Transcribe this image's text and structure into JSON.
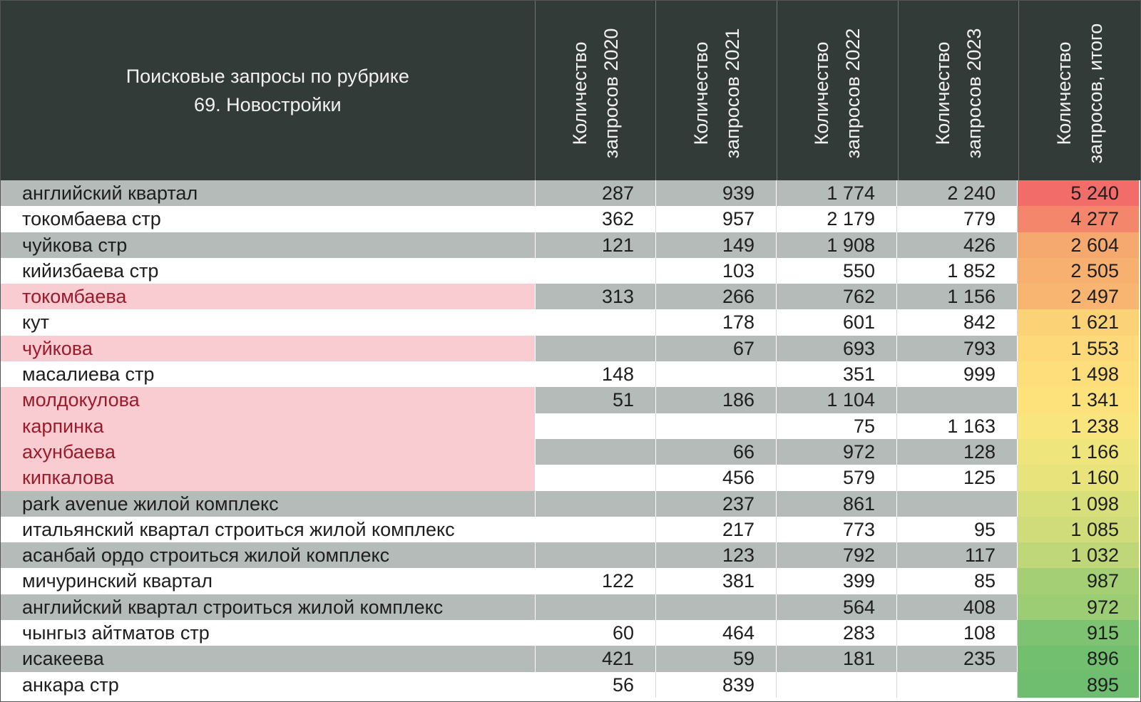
{
  "chart_data": {
    "type": "table",
    "title_lines": [
      "Поисковые запросы по рубрике",
      "69. Новостройки"
    ],
    "columns": [
      [
        "Количество",
        "запросов 2020"
      ],
      [
        "Количество",
        "запросов 2021"
      ],
      [
        "Количество",
        "запросов 2022"
      ],
      [
        "Количество",
        "запросов 2023"
      ],
      [
        "Количество",
        "запросов, итого"
      ]
    ],
    "rows": [
      {
        "name": "английский квартал",
        "values": [
          "287",
          "939",
          "1 774",
          "2 240"
        ],
        "total": "5 240",
        "total_color": "#f26d6a",
        "highlight": false
      },
      {
        "name": "токомбаева стр",
        "values": [
          "362",
          "957",
          "2 179",
          "779"
        ],
        "total": "4 277",
        "total_color": "#f3866b",
        "highlight": false
      },
      {
        "name": "чуйкова стр",
        "values": [
          "121",
          "149",
          "1 908",
          "426"
        ],
        "total": "2 604",
        "total_color": "#f6a96f",
        "highlight": false
      },
      {
        "name": "кийизбаева стр",
        "values": [
          "",
          "103",
          "550",
          "1 852"
        ],
        "total": "2 505",
        "total_color": "#f7b06f",
        "highlight": false
      },
      {
        "name": "токомбаева",
        "values": [
          "313",
          "266",
          "762",
          "1 156"
        ],
        "total": "2 497",
        "total_color": "#f8b471",
        "highlight": true
      },
      {
        "name": "кут",
        "values": [
          "",
          "178",
          "601",
          "842"
        ],
        "total": "1 621",
        "total_color": "#fbd276",
        "highlight": false
      },
      {
        "name": "чуйкова",
        "values": [
          "",
          "67",
          "693",
          "793"
        ],
        "total": "1 553",
        "total_color": "#fdd979",
        "highlight": true
      },
      {
        "name": "масалиева стр",
        "values": [
          "148",
          "",
          "351",
          "999"
        ],
        "total": "1 498",
        "total_color": "#fedd7b",
        "highlight": false
      },
      {
        "name": "молдокулова",
        "values": [
          "51",
          "186",
          "1 104",
          ""
        ],
        "total": "1 341",
        "total_color": "#fde27c",
        "highlight": true
      },
      {
        "name": "карпинка",
        "values": [
          "",
          "",
          "75",
          "1 163"
        ],
        "total": "1 238",
        "total_color": "#f9e57d",
        "highlight": true
      },
      {
        "name": "ахунбаева",
        "values": [
          "",
          "66",
          "972",
          "128"
        ],
        "total": "1 166",
        "total_color": "#eee57c",
        "highlight": true
      },
      {
        "name": "кипкалова",
        "values": [
          "",
          "456",
          "579",
          "125"
        ],
        "total": "1 160",
        "total_color": "#e8e37b",
        "highlight": true
      },
      {
        "name": "park avenue жилой комплекс",
        "values": [
          "",
          "237",
          "861",
          ""
        ],
        "total": "1 098",
        "total_color": "#d7df7a",
        "highlight": false
      },
      {
        "name": "итальянский квартал строиться жилой комплекс",
        "values": [
          "",
          "217",
          "773",
          "95"
        ],
        "total": "1 085",
        "total_color": "#cfdc79",
        "highlight": false
      },
      {
        "name": "асанбай ордо строиться жилой комплекс",
        "values": [
          "",
          "123",
          "792",
          "117"
        ],
        "total": "1 032",
        "total_color": "#bfd778",
        "highlight": false
      },
      {
        "name": "мичуринский квартал",
        "values": [
          "122",
          "381",
          "399",
          "85"
        ],
        "total": "987",
        "total_color": "#a5cf75",
        "highlight": false
      },
      {
        "name": "английский квартал строиться жилой комплекс",
        "values": [
          "",
          "",
          "564",
          "408"
        ],
        "total": "972",
        "total_color": "#9ccc74",
        "highlight": false
      },
      {
        "name": "чынгыз айтматов стр",
        "values": [
          "60",
          "464",
          "283",
          "108"
        ],
        "total": "915",
        "total_color": "#7ec371",
        "highlight": false
      },
      {
        "name": "исакеева",
        "values": [
          "421",
          "59",
          "181",
          "235"
        ],
        "total": "896",
        "total_color": "#72bf70",
        "highlight": false
      },
      {
        "name": "анкара стр",
        "values": [
          "56",
          "839",
          "",
          ""
        ],
        "total": "895",
        "total_color": "#6fbe6f",
        "highlight": false
      }
    ]
  }
}
